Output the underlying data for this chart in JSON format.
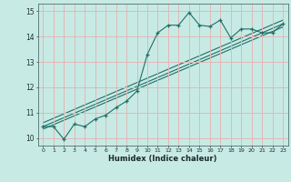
{
  "xlabel": "Humidex (Indice chaleur)",
  "xlim": [
    -0.5,
    23.5
  ],
  "ylim": [
    9.7,
    15.3
  ],
  "xticks": [
    0,
    1,
    2,
    3,
    4,
    5,
    6,
    7,
    8,
    9,
    10,
    11,
    12,
    13,
    14,
    15,
    16,
    17,
    18,
    19,
    20,
    21,
    22,
    23
  ],
  "yticks": [
    10,
    11,
    12,
    13,
    14,
    15
  ],
  "bg_color": "#c8eae4",
  "grid_color": "#e0b8b8",
  "line_color": "#1e7068",
  "main_data_x": [
    0,
    1,
    2,
    3,
    4,
    5,
    6,
    7,
    8,
    9,
    10,
    11,
    12,
    13,
    14,
    15,
    16,
    17,
    18,
    19,
    20,
    21,
    22,
    23
  ],
  "main_data_y": [
    10.45,
    10.45,
    9.95,
    10.55,
    10.45,
    10.75,
    10.9,
    11.2,
    11.45,
    11.85,
    13.3,
    14.15,
    14.45,
    14.45,
    14.95,
    14.45,
    14.4,
    14.65,
    13.95,
    14.3,
    14.3,
    14.15,
    14.15,
    14.5
  ],
  "trend1_x": [
    0,
    23
  ],
  "trend1_y": [
    10.45,
    14.5
  ],
  "trend2_x": [
    0,
    23
  ],
  "trend2_y": [
    10.6,
    14.65
  ],
  "trend3_x": [
    0,
    23
  ],
  "trend3_y": [
    10.35,
    14.38
  ]
}
